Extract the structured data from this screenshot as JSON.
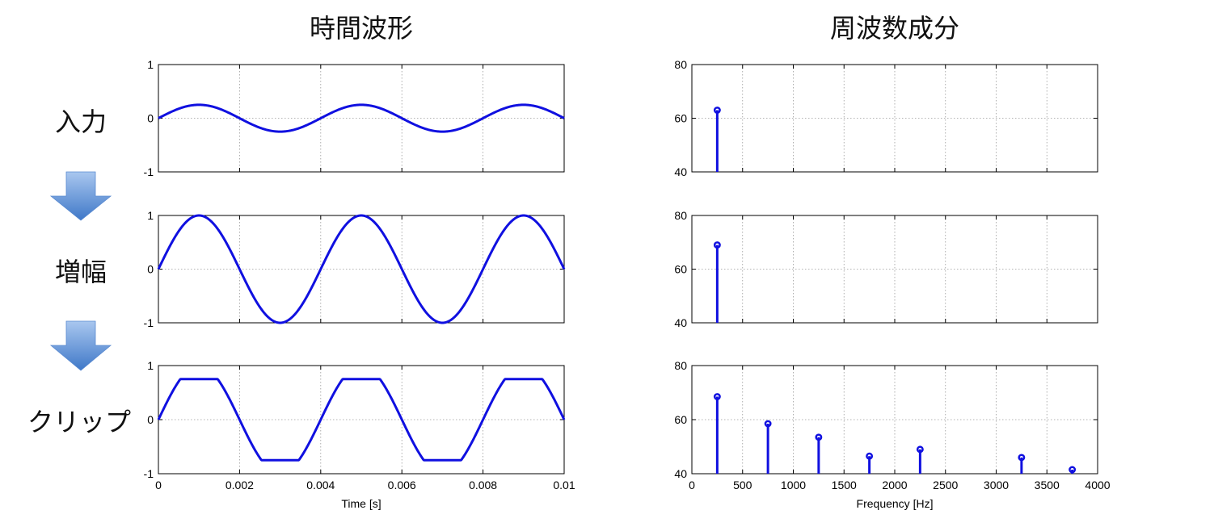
{
  "titles": {
    "time": "時間波形",
    "freq": "周波数成分"
  },
  "row_labels": [
    "入力",
    "増幅",
    "クリップ"
  ],
  "colors": {
    "line": "#1010e0",
    "arrow_top": "#a9c7ef",
    "arrow_bottom": "#3f78c8"
  },
  "chart_data": [
    {
      "type": "line",
      "row": 0,
      "column": "time",
      "xlim": [
        0,
        0.01
      ],
      "ylim": [
        -1,
        1
      ],
      "grid": true,
      "frequency_hz": 250,
      "amplitude": 0.25,
      "clip": null,
      "ytick_labels": [
        "1",
        "0",
        "-1"
      ],
      "xticks": [
        0,
        0.002,
        0.004,
        0.006,
        0.008,
        0.01
      ]
    },
    {
      "type": "line",
      "row": 1,
      "column": "time",
      "xlim": [
        0,
        0.01
      ],
      "ylim": [
        -1,
        1
      ],
      "grid": true,
      "frequency_hz": 250,
      "amplitude": 1.0,
      "clip": null,
      "ytick_labels": [
        "1",
        "0",
        "-1"
      ],
      "xticks": [
        0,
        0.002,
        0.004,
        0.006,
        0.008,
        0.01
      ]
    },
    {
      "type": "line",
      "row": 2,
      "column": "time",
      "xlim": [
        0,
        0.01
      ],
      "ylim": [
        -1,
        1
      ],
      "grid": true,
      "frequency_hz": 250,
      "amplitude": 1.0,
      "clip": 0.75,
      "ytick_labels": [
        "1",
        "0",
        "-1"
      ],
      "xticks": [
        0,
        0.002,
        0.004,
        0.006,
        0.008,
        0.01
      ],
      "xtick_labels": [
        "0",
        "0.002",
        "0.004",
        "0.006",
        "0.008",
        "0.01"
      ],
      "xlabel": "Time [s]"
    },
    {
      "type": "stem",
      "row": 0,
      "column": "freq",
      "xlim": [
        0,
        4000
      ],
      "ylim": [
        40,
        80
      ],
      "grid": true,
      "x": [
        250
      ],
      "y": [
        63
      ],
      "ytick_labels": [
        "80",
        "60",
        "40"
      ],
      "xticks": [
        0,
        500,
        1000,
        1500,
        2000,
        2500,
        3000,
        3500,
        4000
      ]
    },
    {
      "type": "stem",
      "row": 1,
      "column": "freq",
      "xlim": [
        0,
        4000
      ],
      "ylim": [
        40,
        80
      ],
      "grid": true,
      "x": [
        250
      ],
      "y": [
        69
      ],
      "ytick_labels": [
        "80",
        "60",
        "40"
      ],
      "xticks": [
        0,
        500,
        1000,
        1500,
        2000,
        2500,
        3000,
        3500,
        4000
      ]
    },
    {
      "type": "stem",
      "row": 2,
      "column": "freq",
      "xlim": [
        0,
        4000
      ],
      "ylim": [
        40,
        80
      ],
      "grid": true,
      "x": [
        250,
        750,
        1250,
        1750,
        2250,
        3250,
        3750
      ],
      "y": [
        68.5,
        58.5,
        53.5,
        46.5,
        49,
        46,
        41.5
      ],
      "ytick_labels": [
        "80",
        "60",
        "40"
      ],
      "xticks": [
        0,
        500,
        1000,
        1500,
        2000,
        2500,
        3000,
        3500,
        4000
      ],
      "xtick_labels": [
        "0",
        "500",
        "1000",
        "1500",
        "2000",
        "2500",
        "3000",
        "3500",
        "4000"
      ],
      "xlabel": "Frequency [Hz]"
    }
  ]
}
